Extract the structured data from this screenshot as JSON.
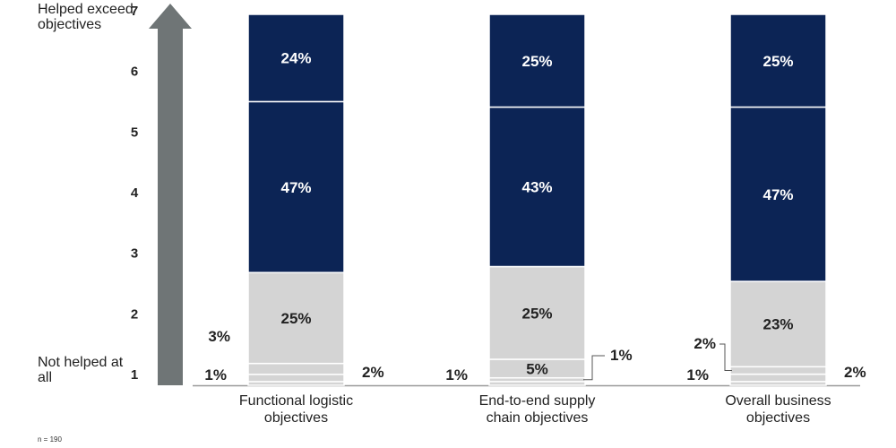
{
  "colors": {
    "dark": "#0c2455",
    "light": "#d4d4d4",
    "arrow": "#6f7576",
    "axis": "#999999"
  },
  "scale_labels": {
    "top": "Helped exceed objectives",
    "bottom": "Not helped at all"
  },
  "footnote": "n = 190",
  "chart_data": {
    "type": "bar",
    "stacked": true,
    "yticks": [
      "1",
      "2",
      "3",
      "4",
      "5",
      "6",
      "7"
    ],
    "categories": [
      [
        "Functional logistic",
        "objectives"
      ],
      [
        "End-to-end supply",
        "chain objectives"
      ],
      [
        "Overall business",
        "objectives"
      ]
    ],
    "segments_bottom_to_top": [
      [
        {
          "value": 1,
          "label": "1%",
          "color": "light",
          "label_pos": "left"
        },
        {
          "value": 2,
          "label": "2%",
          "color": "light",
          "label_pos": "right"
        },
        {
          "value": 3,
          "label": "3%",
          "color": "light",
          "label_pos": "left-up"
        },
        {
          "value": 25,
          "label": "25%",
          "color": "light",
          "label_pos": "inside"
        },
        {
          "value": 47,
          "label": "47%",
          "color": "dark",
          "label_pos": "inside"
        },
        {
          "value": 24,
          "label": "24%",
          "color": "dark",
          "label_pos": "inside"
        }
      ],
      [
        {
          "value": 1,
          "label": "1%",
          "color": "light",
          "label_pos": "left"
        },
        {
          "value": 1,
          "label": "1%",
          "color": "light",
          "label_pos": "right-leader"
        },
        {
          "value": 5,
          "label": "5%",
          "color": "light",
          "label_pos": "inside"
        },
        {
          "value": 25,
          "label": "25%",
          "color": "light",
          "label_pos": "inside"
        },
        {
          "value": 43,
          "label": "43%",
          "color": "dark",
          "label_pos": "inside"
        },
        {
          "value": 25,
          "label": "25%",
          "color": "dark",
          "label_pos": "inside"
        }
      ],
      [
        {
          "value": 1,
          "label": "1%",
          "color": "light",
          "label_pos": "left"
        },
        {
          "value": 2,
          "label": "2%",
          "color": "light",
          "label_pos": "right"
        },
        {
          "value": 2,
          "label": "2%",
          "color": "light",
          "label_pos": "left-leader"
        },
        {
          "value": 23,
          "label": "23%",
          "color": "light",
          "label_pos": "inside"
        },
        {
          "value": 47,
          "label": "47%",
          "color": "dark",
          "label_pos": "inside"
        },
        {
          "value": 25,
          "label": "25%",
          "color": "dark",
          "label_pos": "inside"
        }
      ]
    ]
  }
}
